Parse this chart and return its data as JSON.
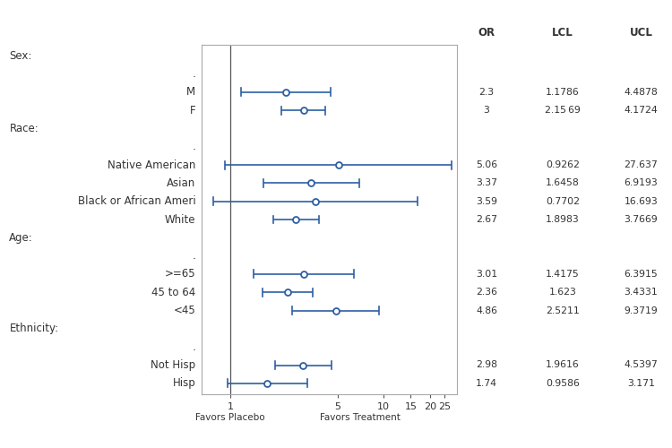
{
  "rows": [
    {
      "label": "Sex:",
      "header": true,
      "or": null,
      "lcl": null,
      "ucl": null
    },
    {
      "label": ".",
      "header": false,
      "dot": true,
      "or": null,
      "lcl": null,
      "ucl": null
    },
    {
      "label": "M",
      "header": false,
      "dot": false,
      "or": 2.3,
      "lcl": 1.1786,
      "ucl": 4.4878
    },
    {
      "label": "F",
      "header": false,
      "dot": false,
      "or": 3.0,
      "lcl": 2.1569,
      "ucl": 4.1724
    },
    {
      "label": "Race:",
      "header": true,
      "or": null,
      "lcl": null,
      "ucl": null
    },
    {
      "label": ".",
      "header": false,
      "dot": true,
      "or": null,
      "lcl": null,
      "ucl": null
    },
    {
      "label": "Native American",
      "header": false,
      "dot": false,
      "or": 5.06,
      "lcl": 0.9262,
      "ucl": 27.637
    },
    {
      "label": "Asian",
      "header": false,
      "dot": false,
      "or": 3.37,
      "lcl": 1.6458,
      "ucl": 6.9193
    },
    {
      "label": "Black or African Ameri",
      "header": false,
      "dot": false,
      "or": 3.59,
      "lcl": 0.7702,
      "ucl": 16.693
    },
    {
      "label": "White",
      "header": false,
      "dot": false,
      "or": 2.67,
      "lcl": 1.8983,
      "ucl": 3.7669
    },
    {
      "label": "Age:",
      "header": true,
      "or": null,
      "lcl": null,
      "ucl": null
    },
    {
      "label": ".",
      "header": false,
      "dot": true,
      "or": null,
      "lcl": null,
      "ucl": null
    },
    {
      "label": ">=65",
      "header": false,
      "dot": false,
      "or": 3.01,
      "lcl": 1.4175,
      "ucl": 6.3915
    },
    {
      "label": "45 to 64",
      "header": false,
      "dot": false,
      "or": 2.36,
      "lcl": 1.623,
      "ucl": 3.4331
    },
    {
      "label": "<45",
      "header": false,
      "dot": false,
      "or": 4.86,
      "lcl": 2.5211,
      "ucl": 9.3719
    },
    {
      "label": "Ethnicity:",
      "header": true,
      "or": null,
      "lcl": null,
      "ucl": null
    },
    {
      "label": ".",
      "header": false,
      "dot": true,
      "or": null,
      "lcl": null,
      "ucl": null
    },
    {
      "label": "Not Hisp",
      "header": false,
      "dot": false,
      "or": 2.98,
      "lcl": 1.9616,
      "ucl": 4.5397
    },
    {
      "label": "Hisp",
      "header": false,
      "dot": false,
      "or": 1.74,
      "lcl": 0.9586,
      "ucl": 3.171
    }
  ],
  "or_strs": [
    "2.3",
    "3",
    "5.06",
    "3.37",
    "3.59",
    "2.67",
    "3.01",
    "2.36",
    "4.86",
    "2.98",
    "1.74"
  ],
  "lcl_strs": [
    "1.1786",
    "2.15 69",
    "0.9262",
    "1.6458",
    "0.7702",
    "1.8983",
    "1.4175",
    "1.623",
    "2.5211",
    "1.9616",
    "0.9586"
  ],
  "ucl_strs": [
    "4.4878",
    "4.1724",
    "27.637",
    "6.9193",
    "16.693",
    "3.7669",
    "6.3915",
    "3.4331",
    "9.3719",
    "4.5397",
    "3.171"
  ],
  "col_headers": [
    "OR",
    "LCL",
    "UCL"
  ],
  "x_ticks": [
    1,
    5,
    10,
    15,
    20,
    25
  ],
  "x_min": 0.65,
  "x_max": 30,
  "vline_x": 1,
  "favors_placebo": "Favors Placebo",
  "favors_treatment": "Favors Treatment",
  "plot_color": "#2e5fa3",
  "spine_color": "#aaaaaa",
  "text_color": "#333333"
}
